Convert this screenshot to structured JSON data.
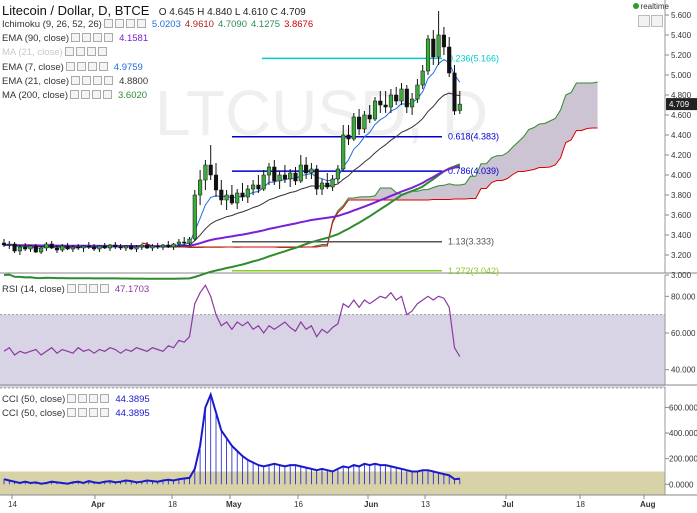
{
  "header": {
    "symbol": "Litecoin / Dollar, D, BTCE",
    "ohlc": "O 4.645 H 4.840 L 4.610 C 4.709"
  },
  "realtime_label": "realtime",
  "watermark": "LTCUSD, D",
  "indicators": [
    {
      "label": "Ichimoku (9, 26, 52, 26)",
      "values": [
        "5.0203",
        "4.9610",
        "4.7090",
        "4.1275",
        "3.8676"
      ],
      "colors": [
        "#1e6fe0",
        "#b22222",
        "#2e8b57",
        "#2e8b57",
        "#cc0000"
      ]
    },
    {
      "label": "EMA (90, close)",
      "values": [
        "4.1581"
      ],
      "colors": [
        "#7a1fd6"
      ]
    },
    {
      "label": "MA (21, close)",
      "values": [],
      "colors": []
    },
    {
      "label": "EMA (7, close)",
      "values": [
        "4.9759"
      ],
      "colors": [
        "#1e6fe0"
      ]
    },
    {
      "label": "EMA (21, close)",
      "values": [
        "4.8800"
      ],
      "colors": [
        "#333333"
      ]
    },
    {
      "label": "MA (200, close)",
      "values": [
        "3.6020"
      ],
      "colors": [
        "#2e8b2e"
      ]
    }
  ],
  "rsi_panel": {
    "label": "RSI (14, close)",
    "value": "47.1703",
    "color": "#8b3aa0"
  },
  "cci_panel": [
    {
      "label": "CCI (50, close)",
      "value": "44.3895",
      "color": "#1a1acc"
    },
    {
      "label": "CCI (50, close)",
      "value": "44.3895",
      "color": "#1a1acc"
    }
  ],
  "chart_data": [
    {
      "type": "candlestick",
      "title": "Litecoin / Dollar, D, BTCE",
      "ylim": [
        3.0,
        5.7
      ],
      "ytick_labels": [
        "5.600",
        "5.400",
        "5.200",
        "5.000",
        "4.800",
        "4.600",
        "4.400",
        "4.200",
        "4.000",
        "3.800",
        "3.600",
        "3.400",
        "3.200",
        "3.000"
      ],
      "last_price": "4.709",
      "x_labels": [
        "14",
        "Apr",
        "18",
        "May",
        "16",
        "Jun",
        "13",
        "Jul",
        "18",
        "Aug"
      ],
      "fibonacci": [
        {
          "label": "0.236(5.166)",
          "value": 5.166,
          "color": "#00cccc"
        },
        {
          "label": "0.618(4.383)",
          "value": 4.383,
          "color": "#0000cc"
        },
        {
          "label": "0.786(4.039)",
          "value": 4.039,
          "color": "#0000cc"
        },
        {
          "label": "1.13(3.333)",
          "value": 3.333,
          "color": "#555555"
        },
        {
          "label": "1.272(3.042)",
          "value": 3.042,
          "color": "#88cc22"
        }
      ],
      "candles": [
        [
          3.32,
          3.36,
          3.28,
          3.3
        ],
        [
          3.3,
          3.34,
          3.26,
          3.31
        ],
        [
          3.31,
          3.33,
          3.22,
          3.24
        ],
        [
          3.24,
          3.3,
          3.2,
          3.28
        ],
        [
          3.28,
          3.32,
          3.24,
          3.26
        ],
        [
          3.26,
          3.3,
          3.23,
          3.29
        ],
        [
          3.29,
          3.31,
          3.22,
          3.23
        ],
        [
          3.23,
          3.29,
          3.21,
          3.27
        ],
        [
          3.27,
          3.33,
          3.24,
          3.31
        ],
        [
          3.31,
          3.34,
          3.26,
          3.27
        ],
        [
          3.27,
          3.3,
          3.22,
          3.25
        ],
        [
          3.25,
          3.31,
          3.23,
          3.29
        ],
        [
          3.29,
          3.32,
          3.25,
          3.26
        ],
        [
          3.26,
          3.3,
          3.23,
          3.28
        ],
        [
          3.28,
          3.31,
          3.25,
          3.27
        ],
        [
          3.27,
          3.3,
          3.23,
          3.29
        ],
        [
          3.29,
          3.33,
          3.26,
          3.28
        ],
        [
          3.28,
          3.31,
          3.24,
          3.26
        ],
        [
          3.26,
          3.3,
          3.23,
          3.29
        ],
        [
          3.29,
          3.32,
          3.26,
          3.27
        ],
        [
          3.27,
          3.31,
          3.24,
          3.3
        ],
        [
          3.3,
          3.33,
          3.26,
          3.28
        ],
        [
          3.28,
          3.31,
          3.25,
          3.27
        ],
        [
          3.27,
          3.3,
          3.24,
          3.29
        ],
        [
          3.29,
          3.32,
          3.25,
          3.26
        ],
        [
          3.26,
          3.3,
          3.23,
          3.28
        ],
        [
          3.28,
          3.31,
          3.25,
          3.3
        ],
        [
          3.3,
          3.33,
          3.26,
          3.27
        ],
        [
          3.27,
          3.31,
          3.24,
          3.29
        ],
        [
          3.29,
          3.32,
          3.26,
          3.28
        ],
        [
          3.28,
          3.31,
          3.25,
          3.3
        ],
        [
          3.3,
          3.34,
          3.27,
          3.28
        ],
        [
          3.28,
          3.32,
          3.25,
          3.31
        ],
        [
          3.31,
          3.36,
          3.29,
          3.33
        ],
        [
          3.33,
          3.38,
          3.3,
          3.32
        ],
        [
          3.32,
          3.38,
          3.3,
          3.36
        ],
        [
          3.36,
          3.85,
          3.34,
          3.8
        ],
        [
          3.8,
          4.05,
          3.7,
          3.95
        ],
        [
          3.95,
          4.15,
          3.85,
          4.1
        ],
        [
          4.1,
          4.3,
          3.95,
          4.0
        ],
        [
          4.0,
          4.12,
          3.78,
          3.85
        ],
        [
          3.85,
          3.95,
          3.7,
          3.75
        ],
        [
          3.75,
          3.85,
          3.65,
          3.8
        ],
        [
          3.8,
          3.9,
          3.7,
          3.72
        ],
        [
          3.72,
          3.86,
          3.66,
          3.82
        ],
        [
          3.82,
          3.92,
          3.74,
          3.78
        ],
        [
          3.78,
          3.9,
          3.72,
          3.86
        ],
        [
          3.86,
          3.95,
          3.8,
          3.9
        ],
        [
          3.9,
          4.0,
          3.82,
          3.86
        ],
        [
          3.86,
          4.05,
          3.84,
          4.0
        ],
        [
          4.0,
          4.12,
          3.9,
          4.08
        ],
        [
          4.08,
          4.15,
          3.9,
          3.94
        ],
        [
          3.94,
          4.04,
          3.86,
          4.0
        ],
        [
          4.0,
          4.1,
          3.92,
          3.96
        ],
        [
          3.96,
          4.06,
          3.88,
          4.02
        ],
        [
          4.02,
          4.08,
          3.9,
          3.94
        ],
        [
          3.94,
          4.2,
          3.92,
          4.1
        ],
        [
          4.1,
          4.18,
          3.96,
          4.02
        ],
        [
          4.02,
          4.12,
          3.96,
          4.06
        ],
        [
          4.06,
          4.1,
          3.8,
          3.86
        ],
        [
          3.86,
          3.96,
          3.8,
          3.92
        ],
        [
          3.92,
          4.02,
          3.86,
          3.88
        ],
        [
          3.88,
          4.0,
          3.84,
          3.96
        ],
        [
          3.96,
          4.1,
          3.92,
          4.06
        ],
        [
          4.06,
          4.5,
          4.04,
          4.4
        ],
        [
          4.4,
          4.5,
          4.3,
          4.36
        ],
        [
          4.36,
          4.62,
          4.34,
          4.58
        ],
        [
          4.58,
          4.66,
          4.4,
          4.46
        ],
        [
          4.46,
          4.64,
          4.42,
          4.6
        ],
        [
          4.6,
          4.7,
          4.52,
          4.56
        ],
        [
          4.56,
          4.78,
          4.54,
          4.74
        ],
        [
          4.74,
          4.84,
          4.62,
          4.7
        ],
        [
          4.7,
          4.84,
          4.62,
          4.68
        ],
        [
          4.68,
          4.86,
          4.62,
          4.8
        ],
        [
          4.8,
          4.88,
          4.7,
          4.74
        ],
        [
          4.74,
          4.92,
          4.7,
          4.86
        ],
        [
          4.86,
          4.9,
          4.62,
          4.68
        ],
        [
          4.68,
          4.82,
          4.6,
          4.76
        ],
        [
          4.76,
          4.96,
          4.72,
          4.9
        ],
        [
          4.9,
          5.1,
          4.86,
          5.04
        ],
        [
          5.04,
          5.4,
          5.0,
          5.36
        ],
        [
          5.36,
          5.45,
          5.1,
          5.18
        ],
        [
          5.18,
          5.64,
          5.1,
          5.4
        ],
        [
          5.4,
          5.48,
          5.2,
          5.28
        ],
        [
          5.28,
          5.38,
          4.98,
          5.02
        ],
        [
          5.02,
          5.1,
          4.6,
          4.64
        ],
        [
          4.645,
          4.84,
          4.61,
          4.709
        ]
      ],
      "series": [
        {
          "name": "EMA (90, close)",
          "color": "#7a1fd6"
        },
        {
          "name": "EMA (7, close)",
          "color": "#1e6fe0"
        },
        {
          "name": "EMA (21, close)",
          "color": "#333333"
        },
        {
          "name": "MA (200, close)",
          "color": "#2e8b2e"
        }
      ]
    },
    {
      "type": "line",
      "title": "RSI (14, close)",
      "ylim": [
        30,
        90
      ],
      "ytick_labels": [
        "80.000",
        "60.000",
        "40.000"
      ],
      "band": [
        30,
        70
      ],
      "values": [
        50,
        52,
        48,
        50,
        49,
        50,
        51,
        48,
        50,
        52,
        49,
        51,
        50,
        49,
        52,
        50,
        51,
        49,
        51,
        50,
        52,
        51,
        49,
        51,
        50,
        52,
        51,
        50,
        52,
        51,
        50,
        53,
        52,
        56,
        55,
        58,
        76,
        82,
        86,
        80,
        70,
        64,
        66,
        62,
        66,
        64,
        66,
        62,
        64,
        60,
        64,
        62,
        64,
        66,
        63,
        61,
        66,
        62,
        64,
        58,
        62,
        60,
        63,
        65,
        76,
        74,
        78,
        74,
        78,
        76,
        78,
        80,
        79,
        82,
        78,
        80,
        70,
        72,
        76,
        78,
        80,
        78,
        80,
        79,
        74,
        52,
        47.17
      ]
    },
    {
      "type": "line",
      "title": "CCI (50, close)",
      "ylim": [
        -60,
        720
      ],
      "ytick_labels": [
        "600.000",
        "400.000",
        "200.000",
        "0.0000"
      ],
      "band": [
        -100,
        100
      ],
      "values": [
        40,
        30,
        20,
        10,
        20,
        10,
        15,
        5,
        10,
        20,
        15,
        10,
        5,
        15,
        20,
        10,
        25,
        15,
        10,
        20,
        25,
        15,
        20,
        30,
        25,
        15,
        20,
        30,
        25,
        20,
        30,
        35,
        30,
        40,
        45,
        50,
        120,
        300,
        600,
        700,
        560,
        420,
        360,
        300,
        260,
        220,
        190,
        170,
        150,
        140,
        150,
        160,
        150,
        140,
        150,
        150,
        140,
        130,
        120,
        110,
        120,
        110,
        100,
        120,
        140,
        130,
        150,
        140,
        160,
        150,
        160,
        150,
        150,
        140,
        130,
        120,
        110,
        100,
        100,
        110,
        110,
        100,
        90,
        80,
        70,
        40,
        44.39
      ]
    }
  ]
}
